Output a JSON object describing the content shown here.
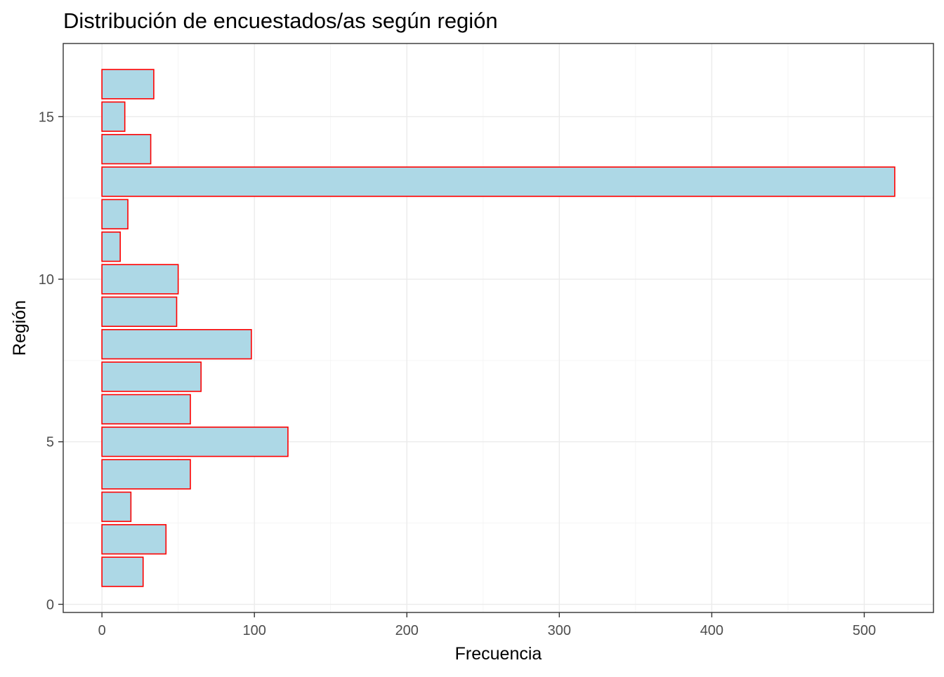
{
  "chart_data": {
    "type": "bar",
    "orientation": "horizontal",
    "title": "Distribución de encuestados/as según región",
    "xlabel": "Frecuencia",
    "ylabel": "Región",
    "categories": [
      1,
      2,
      3,
      4,
      5,
      6,
      7,
      8,
      9,
      10,
      11,
      12,
      13,
      14,
      15,
      16
    ],
    "values": [
      27,
      42,
      19,
      58,
      122,
      58,
      65,
      98,
      49,
      50,
      12,
      17,
      520,
      32,
      15,
      34
    ],
    "xlim": [
      -25.4,
      545.4
    ],
    "ylim": [
      -0.25,
      17.25
    ],
    "x_ticks": [
      0,
      100,
      200,
      300,
      400,
      500
    ],
    "y_ticks": [
      0,
      5,
      10,
      15
    ],
    "x_tick_labels": [
      "0",
      "100",
      "200",
      "300",
      "400",
      "500"
    ],
    "y_tick_labels": [
      "0",
      "5",
      "10",
      "15"
    ],
    "x_minor_ticks": [
      50,
      150,
      250,
      350,
      450
    ],
    "y_minor_ticks": [
      2.5,
      7.5,
      12.5
    ],
    "grid": true,
    "bar_fill": "#add8e6",
    "bar_stroke": "#ff0000",
    "legend": "none"
  }
}
